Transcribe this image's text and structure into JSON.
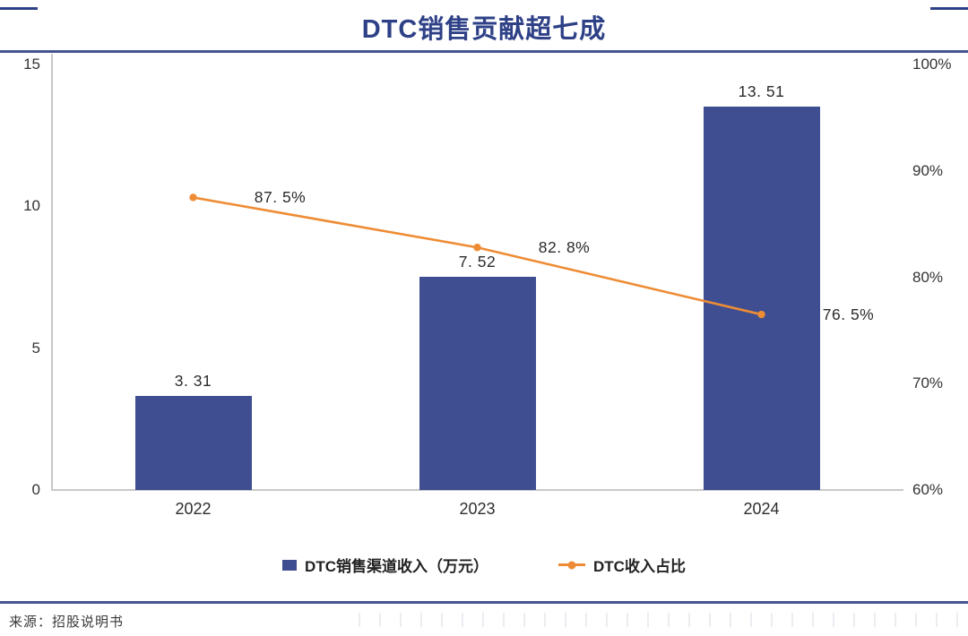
{
  "title": "DTC销售贡献超七成",
  "source": "来源：招股说明书",
  "colors": {
    "bar": "#3E4E90",
    "line": "#EE8C35",
    "title": "#2E4187",
    "rule": "#46548F",
    "axis": "#C9C9C9",
    "text": "#333333"
  },
  "chart_data": {
    "type": "bar",
    "subtype": "bar+line combo, dual axis",
    "title": "DTC销售贡献超七成",
    "categories": [
      "2022",
      "2023",
      "2024"
    ],
    "series": [
      {
        "name": "DTC销售渠道收入（万元）",
        "type": "bar",
        "axis": "left",
        "values": [
          3.31,
          7.52,
          13.51
        ],
        "labels": [
          "3. 31",
          "7. 52",
          "13. 51"
        ]
      },
      {
        "name": "DTC收入占比",
        "type": "line",
        "axis": "right",
        "values": [
          87.5,
          82.8,
          76.5
        ],
        "labels": [
          "87. 5%",
          "82. 8%",
          "76. 5%"
        ]
      }
    ],
    "left_axis": {
      "min": 0,
      "max": 15,
      "tick_values": [
        15,
        10,
        5,
        0
      ],
      "tick_labels": [
        "15",
        "10",
        "5",
        "0"
      ]
    },
    "right_axis": {
      "min": 60,
      "max": 100,
      "tick_values": [
        100,
        90,
        80,
        70,
        60
      ],
      "tick_labels": [
        "100%",
        "90%",
        "80%",
        "70%",
        "60%"
      ]
    },
    "grid": "off",
    "legend_position": "bottom"
  }
}
